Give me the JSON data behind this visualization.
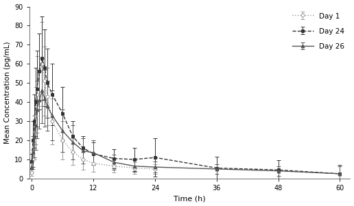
{
  "title": "",
  "xlabel": "Time (h)",
  "ylabel": "Mean Concentration (pg/mL)",
  "ylim": [
    0,
    90
  ],
  "xlim": [
    -0.5,
    62
  ],
  "yticks": [
    0,
    10,
    20,
    30,
    40,
    50,
    60,
    70,
    80,
    90
  ],
  "xticks": [
    0,
    12,
    24,
    36,
    48,
    60
  ],
  "background_color": "#ffffff",
  "day1": {
    "label": "Day 1",
    "color": "#999999",
    "linestyle": "dotted",
    "marker": "o",
    "markerfacecolor": "white",
    "markersize": 3.5,
    "linewidth": 1.0,
    "time": [
      0,
      0.25,
      0.5,
      0.75,
      1.0,
      1.5,
      2.0,
      2.5,
      3.0,
      4.0,
      6.0,
      8.0,
      10.0,
      12.0,
      16.0,
      20.0,
      24.0
    ],
    "mean": [
      3.0,
      10.0,
      20.0,
      33.0,
      44.0,
      56.0,
      60.0,
      51.0,
      43.0,
      30.0,
      20.0,
      14.0,
      10.0,
      8.0,
      6.5,
      5.5,
      5.0
    ],
    "sd": [
      1.5,
      5.0,
      10.0,
      15.0,
      20.0,
      20.0,
      22.0,
      18.0,
      15.0,
      12.0,
      10.0,
      7.0,
      5.5,
      4.5,
      3.5,
      3.0,
      2.5
    ]
  },
  "day24": {
    "label": "Day 24",
    "color": "#333333",
    "linestyle": "dashed",
    "marker": "s",
    "markerfacecolor": "#333333",
    "markersize": 3.5,
    "linewidth": 1.0,
    "time": [
      0,
      0.25,
      0.5,
      0.75,
      1.0,
      1.5,
      2.0,
      2.5,
      3.0,
      4.0,
      6.0,
      8.0,
      10.0,
      12.0,
      16.0,
      20.0,
      24.0,
      36.0,
      48.0,
      60.0
    ],
    "mean": [
      9.0,
      20.0,
      30.0,
      40.0,
      47.0,
      56.0,
      63.0,
      58.0,
      50.0,
      44.0,
      34.0,
      22.0,
      16.0,
      13.0,
      10.5,
      10.0,
      11.0,
      5.5,
      4.5,
      2.5
    ],
    "sd": [
      4.0,
      10.0,
      14.0,
      18.0,
      20.0,
      20.0,
      22.0,
      20.0,
      18.0,
      16.0,
      14.0,
      8.0,
      6.0,
      6.0,
      5.0,
      6.0,
      10.0,
      6.0,
      5.0,
      4.5
    ]
  },
  "day26": {
    "label": "Day 26",
    "color": "#555555",
    "linestyle": "solid",
    "marker": "^",
    "markerfacecolor": "#555555",
    "markersize": 3.5,
    "linewidth": 1.0,
    "time": [
      0,
      0.25,
      0.5,
      0.75,
      1.0,
      1.5,
      2.0,
      2.5,
      3.0,
      4.0,
      6.0,
      8.0,
      10.0,
      12.0,
      16.0,
      20.0,
      24.0,
      36.0,
      48.0,
      60.0
    ],
    "mean": [
      6.0,
      14.0,
      22.0,
      28.0,
      36.0,
      41.0,
      46.0,
      42.0,
      38.0,
      33.0,
      25.0,
      19.0,
      14.5,
      13.5,
      8.5,
      6.5,
      6.0,
      5.0,
      4.0,
      2.5
    ],
    "sd": [
      2.5,
      8.0,
      11.0,
      13.0,
      15.0,
      15.0,
      17.0,
      15.0,
      13.0,
      13.0,
      11.0,
      9.0,
      6.5,
      6.5,
      4.0,
      3.0,
      3.0,
      2.5,
      2.5,
      4.0
    ]
  }
}
